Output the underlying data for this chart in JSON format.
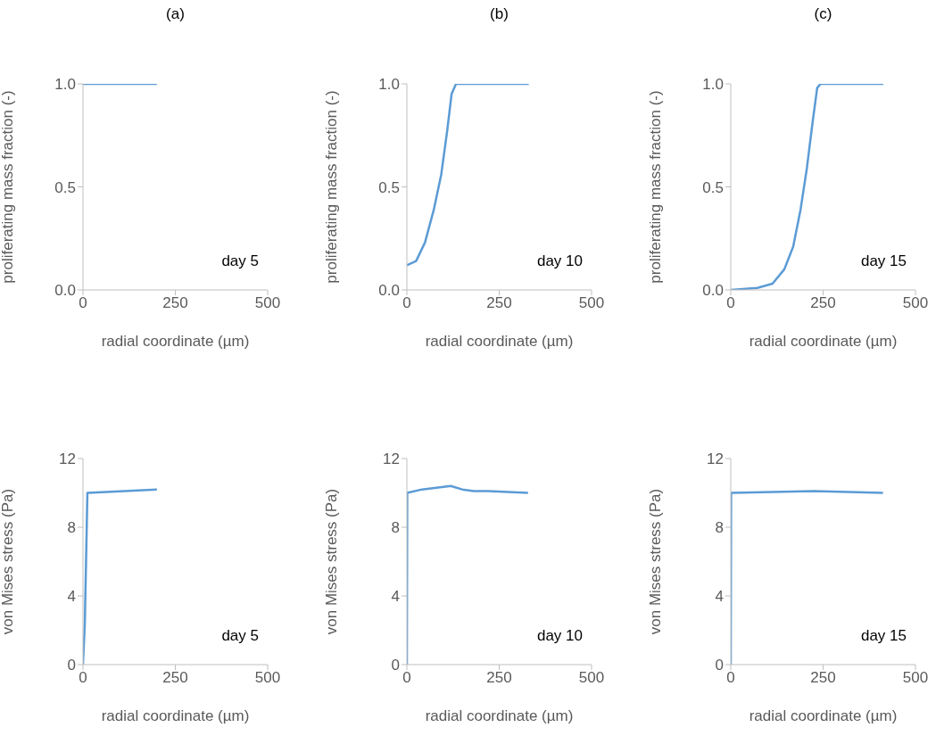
{
  "chart_data": [
    {
      "type": "line",
      "title": "(a)",
      "xlabel": "radial coordinate (µm)",
      "ylabel": "proliferating mass fraction (-)",
      "annotations": [
        "day 5"
      ],
      "xlim": [
        0,
        500
      ],
      "xticks": [
        0,
        250,
        500
      ],
      "ylim": [
        0,
        1
      ],
      "yticks": [
        {
          "value": 0,
          "label": "0.0"
        },
        {
          "value": 0.5,
          "label": "0.5"
        },
        {
          "value": 1,
          "label": "1.0"
        }
      ],
      "marker": "none",
      "series": [
        {
          "color": "#5b9bd5",
          "x": [
            0,
            200
          ],
          "values": [
            1,
            1
          ]
        }
      ]
    },
    {
      "type": "line",
      "title": "(b)",
      "xlabel": "radial coordinate (µm)",
      "ylabel": "proliferating mass fraction (-)",
      "annotations": [
        "day 10"
      ],
      "xlim": [
        0,
        500
      ],
      "xticks": [
        0,
        250,
        500
      ],
      "ylim": [
        0,
        1
      ],
      "yticks": [
        {
          "value": 0,
          "label": "0.0"
        },
        {
          "value": 0.5,
          "label": "0.5"
        },
        {
          "value": 1,
          "label": "1.0"
        }
      ],
      "marker": "none",
      "series": [
        {
          "color": "#5b9bd5",
          "x": [
            0,
            25,
            49,
            73,
            93,
            109,
            121,
            133,
            330
          ],
          "values": [
            0.12,
            0.14,
            0.23,
            0.39,
            0.56,
            0.77,
            0.95,
            1,
            1
          ]
        }
      ]
    },
    {
      "type": "line",
      "title": "(c)",
      "xlabel": "radial coordinate (µm)",
      "ylabel": "proliferating mass fraction (-)",
      "annotations": [
        "day 15"
      ],
      "xlim": [
        0,
        500
      ],
      "xticks": [
        0,
        250,
        500
      ],
      "ylim": [
        0,
        1
      ],
      "yticks": [
        {
          "value": 0,
          "label": "0.0"
        },
        {
          "value": 0.5,
          "label": "0.5"
        },
        {
          "value": 1,
          "label": "1.0"
        }
      ],
      "marker": "none",
      "series": [
        {
          "color": "#5b9bd5",
          "x": [
            0,
            72,
            113,
            145,
            169,
            189,
            206,
            222,
            234,
            243,
            413
          ],
          "values": [
            0,
            0.01,
            0.03,
            0.1,
            0.21,
            0.39,
            0.59,
            0.82,
            0.98,
            1,
            1
          ]
        }
      ]
    },
    {
      "type": "line",
      "xlabel": "radial coordinate (µm)",
      "ylabel": "von Mises stress (Pa)",
      "annotations": [
        "day 5"
      ],
      "xlim": [
        0,
        500
      ],
      "xticks": [
        0,
        250,
        500
      ],
      "ylim": [
        0,
        12
      ],
      "yticks": [
        0,
        4,
        8,
        12
      ],
      "marker": "none",
      "series": [
        {
          "color": "#5b9bd5",
          "x": [
            0,
            5,
            12,
            200
          ],
          "values": [
            0,
            2.4,
            10,
            10.2
          ]
        }
      ]
    },
    {
      "type": "line",
      "xlabel": "radial coordinate (µm)",
      "ylabel": "von Mises stress (Pa)",
      "annotations": [
        "day 10"
      ],
      "xlim": [
        0,
        500
      ],
      "xticks": [
        0,
        250,
        500
      ],
      "ylim": [
        0,
        12
      ],
      "yticks": [
        0,
        4,
        8,
        12
      ],
      "marker": "none",
      "series": [
        {
          "color": "#5b9bd5",
          "x": [
            0,
            1,
            41,
            119,
            150,
            181,
            220,
            328
          ],
          "values": [
            0,
            10,
            10.2,
            10.4,
            10.2,
            10.1,
            10.1,
            10
          ]
        }
      ]
    },
    {
      "type": "line",
      "xlabel": "radial coordinate (µm)",
      "ylabel": "von Mises stress (Pa)",
      "annotations": [
        "day 15"
      ],
      "xlim": [
        0,
        500
      ],
      "xticks": [
        0,
        250,
        500
      ],
      "ylim": [
        0,
        12
      ],
      "yticks": [
        0,
        4,
        8,
        12
      ],
      "marker": "none",
      "series": [
        {
          "color": "#5b9bd5",
          "x": [
            0,
            1,
            225,
            412
          ],
          "values": [
            0,
            10,
            10.1,
            10
          ]
        }
      ]
    }
  ]
}
